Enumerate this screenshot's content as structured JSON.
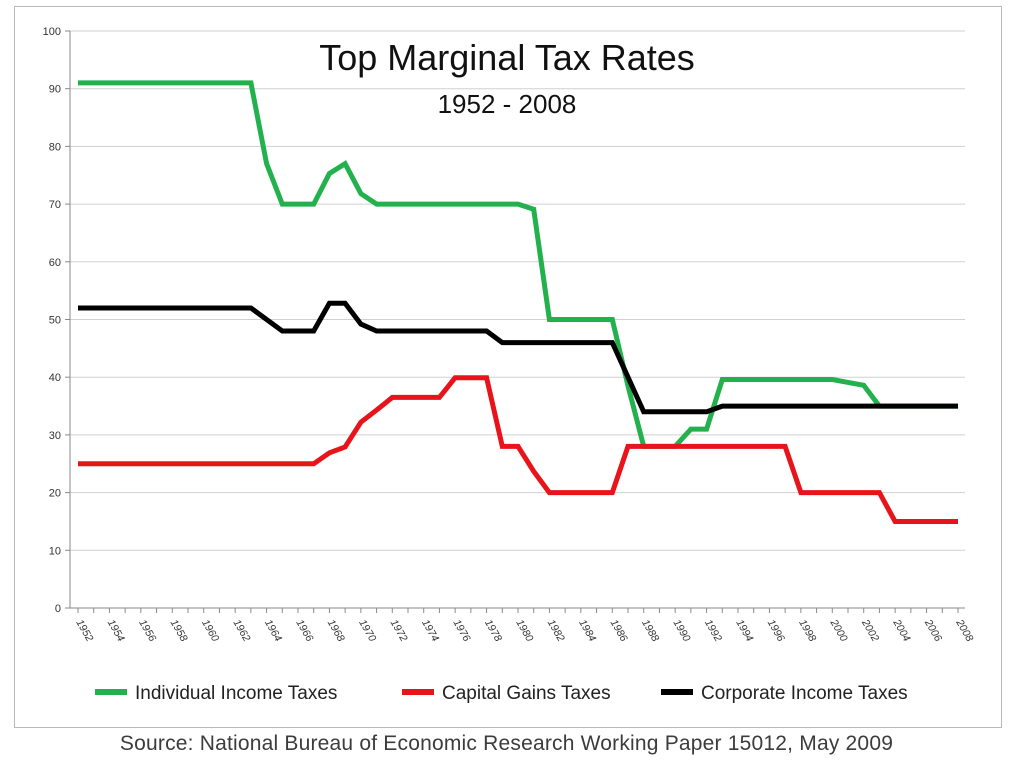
{
  "chart_data": {
    "type": "line",
    "title": "Top Marginal Tax Rates",
    "subtitle": "1952 - 2008",
    "xlabel": "",
    "ylabel": "",
    "ylim": [
      0,
      100
    ],
    "yticks": [
      "0",
      "10",
      "20",
      "30",
      "40",
      "50",
      "60",
      "70",
      "80",
      "90",
      "100"
    ],
    "x": [
      1952,
      1953,
      1954,
      1955,
      1956,
      1957,
      1958,
      1959,
      1960,
      1961,
      1962,
      1963,
      1964,
      1965,
      1966,
      1967,
      1968,
      1969,
      1970,
      1971,
      1972,
      1973,
      1974,
      1975,
      1976,
      1977,
      1978,
      1979,
      1980,
      1981,
      1982,
      1983,
      1984,
      1985,
      1986,
      1987,
      1988,
      1989,
      1990,
      1991,
      1992,
      1993,
      1994,
      1995,
      1996,
      1997,
      1998,
      1999,
      2000,
      2001,
      2002,
      2003,
      2004,
      2005,
      2006,
      2007,
      2008
    ],
    "xticks": [
      "1952",
      "1954",
      "1956",
      "1958",
      "1960",
      "1962",
      "1964",
      "1966",
      "1968",
      "1970",
      "1972",
      "1974",
      "1976",
      "1978",
      "1980",
      "1982",
      "1984",
      "1986",
      "1988",
      "1990",
      "1992",
      "1994",
      "1996",
      "1998",
      "2000",
      "2002",
      "2004",
      "2006",
      "2008"
    ],
    "grid": true,
    "legend_position": "bottom",
    "series": [
      {
        "name": "Individual Income Taxes",
        "color": "#22b14c",
        "values": [
          91,
          91,
          91,
          91,
          91,
          91,
          91,
          91,
          91,
          91,
          91,
          91,
          77,
          70,
          70,
          70,
          75.3,
          77,
          71.8,
          70,
          70,
          70,
          70,
          70,
          70,
          70,
          70,
          70,
          70,
          69.1,
          50,
          50,
          50,
          50,
          50,
          38.5,
          28,
          28,
          28,
          31,
          31,
          39.6,
          39.6,
          39.6,
          39.6,
          39.6,
          39.6,
          39.6,
          39.6,
          39.1,
          38.6,
          35,
          35,
          35,
          35,
          35,
          35
        ]
      },
      {
        "name": "Capital Gains Taxes",
        "color": "#e8141b",
        "values": [
          25,
          25,
          25,
          25,
          25,
          25,
          25,
          25,
          25,
          25,
          25,
          25,
          25,
          25,
          25,
          25,
          26.9,
          27.9,
          32.2,
          34.3,
          36.5,
          36.5,
          36.5,
          36.5,
          39.9,
          39.9,
          39.9,
          28,
          28,
          23.7,
          20,
          20,
          20,
          20,
          20,
          28,
          28,
          28,
          28,
          28,
          28,
          28,
          28,
          28,
          28,
          28,
          20,
          20,
          20,
          20,
          20,
          20,
          15,
          15,
          15,
          15,
          15
        ]
      },
      {
        "name": "Corporate Income Taxes",
        "color": "#000000",
        "values": [
          52,
          52,
          52,
          52,
          52,
          52,
          52,
          52,
          52,
          52,
          52,
          52,
          50,
          48,
          48,
          48,
          52.8,
          52.8,
          49.2,
          48,
          48,
          48,
          48,
          48,
          48,
          48,
          48,
          46,
          46,
          46,
          46,
          46,
          46,
          46,
          46,
          40,
          34,
          34,
          34,
          34,
          34,
          35,
          35,
          35,
          35,
          35,
          35,
          35,
          35,
          35,
          35,
          35,
          35,
          35,
          35,
          35,
          35
        ]
      }
    ]
  },
  "source": "Source: National Bureau of Economic Research Working Paper 15012, May 2009"
}
